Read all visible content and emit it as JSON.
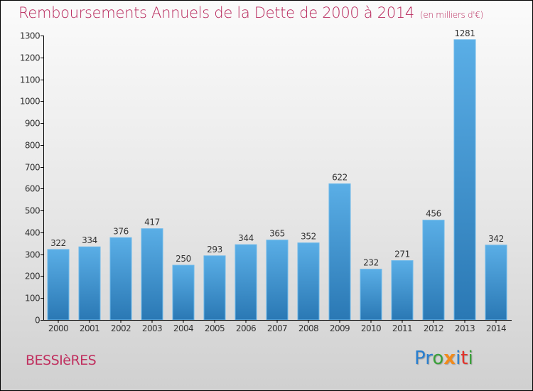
{
  "header": {
    "title": "Remboursements Annuels de la Dette de 2000 à 2014",
    "unit": "(en milliers d'€)"
  },
  "footer": {
    "town": "BESSIèRES",
    "logo": {
      "letters": [
        {
          "char": "P",
          "color": "#2a7fcf"
        },
        {
          "char": "r",
          "color": "#2a7fcf"
        },
        {
          "char": "o",
          "color": "#3aa13a"
        },
        {
          "char": "x",
          "color": "#f08a1c"
        },
        {
          "char": "i",
          "color": "#2a7fcf"
        },
        {
          "char": "t",
          "color": "#e2332b"
        },
        {
          "char": "i",
          "color": "#3aa13a"
        }
      ]
    }
  },
  "colors": {
    "title": "#b8285c",
    "bar_top": "#5aaee6",
    "bar_bottom": "#2a78b4",
    "axis": "#000000"
  },
  "chart_data": {
    "type": "bar",
    "title": "Remboursements Annuels de la Dette de 2000 à 2014",
    "subtitle": "(en milliers d'€)",
    "xlabel": "",
    "ylabel": "",
    "categories": [
      "2000",
      "2001",
      "2002",
      "2003",
      "2004",
      "2005",
      "2006",
      "2007",
      "2008",
      "2009",
      "2010",
      "2011",
      "2012",
      "2013",
      "2014"
    ],
    "values": [
      322,
      334,
      376,
      417,
      250,
      293,
      344,
      365,
      352,
      622,
      232,
      271,
      456,
      1281,
      342
    ],
    "ylim": [
      0,
      1300
    ],
    "yticks": [
      0,
      100,
      200,
      300,
      400,
      500,
      600,
      700,
      800,
      900,
      1000,
      1100,
      1200,
      1300
    ],
    "grid": false,
    "legend": "none",
    "data_labels": true
  }
}
